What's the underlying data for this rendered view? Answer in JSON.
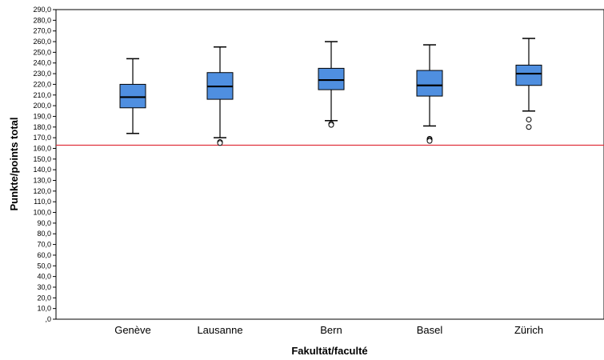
{
  "chart_data": {
    "type": "boxplot",
    "xlabel": "Fakultät/faculté",
    "ylabel": "Punkte/points total",
    "ylim": [
      0,
      290
    ],
    "ytick_step": 10,
    "yticks": [
      ",0",
      "10,0",
      "20,0",
      "30,0",
      "40,0",
      "50,0",
      "60,0",
      "70,0",
      "80,0",
      "90,0",
      "100,0",
      "110,0",
      "120,0",
      "130,0",
      "140,0",
      "150,0",
      "160,0",
      "170,0",
      "180,0",
      "190,0",
      "200,0",
      "210,0",
      "220,0",
      "230,0",
      "240,0",
      "250,0",
      "260,0",
      "270,0",
      "280,0",
      "290,0"
    ],
    "categories": [
      "Genève",
      "Lausanne",
      "Bern",
      "Basel",
      "Zürich"
    ],
    "boxes": [
      {
        "whisker_low": 174,
        "q1": 198,
        "median": 208,
        "q3": 220,
        "whisker_high": 244,
        "outliers": []
      },
      {
        "whisker_low": 170,
        "q1": 206,
        "median": 218,
        "q3": 231,
        "whisker_high": 255,
        "outliers": [
          166,
          165
        ]
      },
      {
        "whisker_low": 186,
        "q1": 215,
        "median": 224,
        "q3": 235,
        "whisker_high": 260,
        "outliers": [
          183,
          182
        ]
      },
      {
        "whisker_low": 181,
        "q1": 209,
        "median": 219,
        "q3": 233,
        "whisker_high": 257,
        "outliers": [
          169,
          168,
          167
        ]
      },
      {
        "whisker_low": 195,
        "q1": 219,
        "median": 230,
        "q3": 238,
        "whisker_high": 263,
        "outliers": [
          187,
          180
        ]
      }
    ],
    "reference_line": {
      "y": 163,
      "color": "#e0303c"
    },
    "box_color": "#4f8fe0",
    "grid": false
  }
}
